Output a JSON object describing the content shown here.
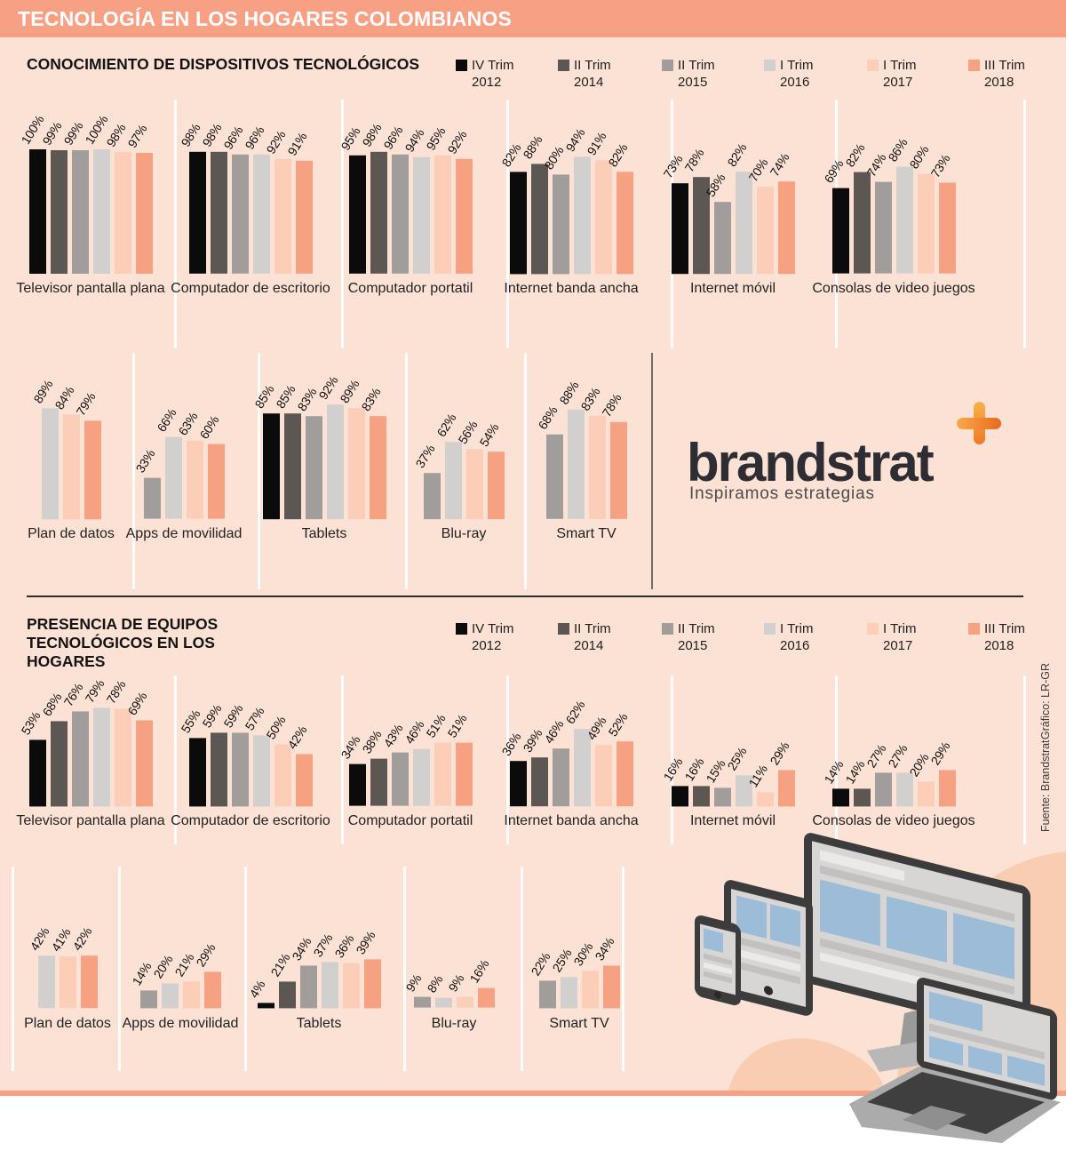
{
  "page": {
    "title": "TECNOLOGÍA EN LOS HOGARES COLOMBIANOS"
  },
  "legend": [
    {
      "label": "IV Trim",
      "year": "2012",
      "color": "#0b0b0b"
    },
    {
      "label": "II Trim",
      "year": "2014",
      "color": "#5c5753"
    },
    {
      "label": "II Trim",
      "year": "2015",
      "color": "#a09d9b"
    },
    {
      "label": "I Trim",
      "year": "2016",
      "color": "#d1d0cf"
    },
    {
      "label": "I Trim",
      "year": "2017",
      "color": "#fccdb7"
    },
    {
      "label": "III Trim",
      "year": "2018",
      "color": "#f7a183"
    }
  ],
  "branding": {
    "logo_text": "brandstrat",
    "logo_tagline": "Inspiramos estrategias",
    "plus_color": "#ef7a22"
  },
  "footer": {
    "source": "Fuente: Brandstrat",
    "credit": "Gráfico: LR-GR"
  },
  "colors": {
    "background": "#fce2d5",
    "header_bar": "#f8a084",
    "blob": "#f9cdb2",
    "device_screen_blue": "#9dbcd8"
  },
  "chart_data": [
    {
      "type": "bar",
      "title": "CONOCIMIENTO DE DISPOSITIVOS TECNOLÓGICOS",
      "unit": "percent",
      "ylim": [
        0,
        100
      ],
      "grid": false,
      "legend_position": "top",
      "series_labels": [
        "IV Trim 2012",
        "II Trim 2014",
        "II Trim 2015",
        "I Trim 2016",
        "I Trim 2017",
        "III Trim 2018"
      ],
      "charts": [
        {
          "category": "Televisor pantalla plana",
          "series_start": 0,
          "values": [
            100,
            99,
            99,
            100,
            98,
            97
          ]
        },
        {
          "category": "Computador de escritorio",
          "series_start": 0,
          "values": [
            98,
            98,
            96,
            96,
            92,
            91
          ]
        },
        {
          "category": "Computador portatil",
          "series_start": 0,
          "values": [
            95,
            98,
            96,
            94,
            95,
            92
          ]
        },
        {
          "category": "Internet banda ancha",
          "series_start": 0,
          "values": [
            82,
            88,
            80,
            94,
            91,
            82
          ]
        },
        {
          "category": "Internet móvil",
          "series_start": 0,
          "values": [
            73,
            78,
            58,
            82,
            70,
            74
          ]
        },
        {
          "category": "Consolas de video juegos",
          "series_start": 0,
          "values": [
            69,
            82,
            74,
            86,
            80,
            73
          ]
        },
        {
          "category": "Plan de datos",
          "series_start": 3,
          "values": [
            89,
            84,
            79
          ]
        },
        {
          "category": "Apps de movilidad",
          "series_start": 2,
          "values": [
            33,
            66,
            63,
            60
          ]
        },
        {
          "category": "Tablets",
          "series_start": 0,
          "values": [
            85,
            85,
            83,
            92,
            89,
            83
          ]
        },
        {
          "category": "Blu-ray",
          "series_start": 2,
          "values": [
            37,
            62,
            56,
            54
          ]
        },
        {
          "category": "Smart TV",
          "series_start": 2,
          "values": [
            68,
            88,
            83,
            78
          ]
        }
      ]
    },
    {
      "type": "bar",
      "title": "PRESENCIA DE EQUIPOS TECNOLÓGICOS EN LOS HOGARES",
      "unit": "percent",
      "ylim": [
        0,
        100
      ],
      "grid": false,
      "legend_position": "top",
      "series_labels": [
        "IV Trim 2012",
        "II Trim 2014",
        "II Trim 2015",
        "I Trim 2016",
        "I Trim 2017",
        "III Trim 2018"
      ],
      "charts": [
        {
          "category": "Televisor pantalla plana",
          "series_start": 0,
          "values": [
            53,
            68,
            76,
            79,
            78,
            69
          ]
        },
        {
          "category": "Computador de escritorio",
          "series_start": 0,
          "values": [
            55,
            59,
            59,
            57,
            50,
            42
          ]
        },
        {
          "category": "Computador portatil",
          "series_start": 0,
          "values": [
            34,
            38,
            43,
            46,
            51,
            51
          ]
        },
        {
          "category": "Internet banda ancha",
          "series_start": 0,
          "values": [
            36,
            39,
            46,
            62,
            49,
            52
          ]
        },
        {
          "category": "Internet móvil",
          "series_start": 0,
          "values": [
            16,
            16,
            15,
            25,
            11,
            29
          ]
        },
        {
          "category": "Consolas de video juegos",
          "series_start": 0,
          "values": [
            14,
            14,
            27,
            27,
            20,
            29
          ]
        },
        {
          "category": "Plan de datos",
          "series_start": 3,
          "values": [
            42,
            41,
            42
          ]
        },
        {
          "category": "Apps de movilidad",
          "series_start": 2,
          "values": [
            14,
            20,
            21,
            29
          ]
        },
        {
          "category": "Tablets",
          "series_start": 0,
          "values": [
            4,
            21,
            34,
            37,
            36,
            39
          ]
        },
        {
          "category": "Blu-ray",
          "series_start": 2,
          "values": [
            9,
            8,
            9,
            16
          ]
        },
        {
          "category": "Smart TV",
          "series_start": 2,
          "values": [
            22,
            25,
            30,
            34
          ]
        }
      ]
    }
  ]
}
